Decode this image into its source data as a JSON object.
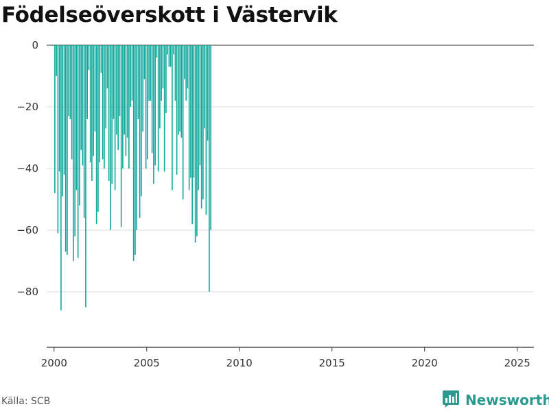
{
  "title": "Födelseöverskott i Västervik",
  "source": "Källa: SCB",
  "brand": {
    "name": "Newsworthy",
    "icon": "newsworthy-logo-icon",
    "color": "#2a9a8f"
  },
  "colors": {
    "bar": "#0fa89a",
    "grid": "#dddddd",
    "axis": "#333333"
  },
  "chart_data": {
    "type": "bar",
    "title": "Födelseöverskott i Västervik",
    "xlabel": "",
    "ylabel": "",
    "xlim": [
      1999.6,
      2025.9
    ],
    "ylim": [
      -98,
      0
    ],
    "y_ticks": [
      0,
      -20,
      -40,
      -60,
      -80
    ],
    "y_tick_labels": [
      "0",
      "−20",
      "−40",
      "−60",
      "−80"
    ],
    "x_ticks": [
      2000,
      2005,
      2010,
      2015,
      2020,
      2025
    ],
    "x_tick_labels": [
      "2000",
      "2005",
      "2010",
      "2015",
      "2020",
      "2025"
    ],
    "grid": true,
    "bar_period": "month",
    "start": "2000-01",
    "values": [
      -48,
      -10,
      -61,
      -41,
      -86,
      -49,
      -42,
      -67,
      -68,
      -23,
      -24,
      -37,
      -70,
      -62,
      -47,
      -69,
      -52,
      -34,
      -39,
      -56,
      -85,
      -24,
      -8,
      -38,
      -44,
      -36,
      -28,
      -58,
      -54,
      -38,
      -9,
      -37,
      -40,
      -27,
      -14,
      -44,
      -60,
      -45,
      -24,
      -47,
      -29,
      -34,
      -23,
      -59,
      -40,
      -29,
      -36,
      -30,
      -40,
      -20,
      -18,
      -70,
      -68,
      -60,
      -24,
      -56,
      -49,
      -28,
      -11,
      -40,
      -37,
      -18,
      -18,
      -35,
      -45,
      -39,
      -4,
      -41,
      -27,
      -18,
      -14,
      -41,
      -22,
      -3,
      -7,
      -7,
      -47,
      -3,
      -18,
      -42,
      -29,
      -28,
      -30,
      -50,
      -11,
      -18,
      -14,
      -47,
      -43,
      -58,
      -43,
      -64,
      -62,
      -47,
      -39,
      -53,
      -50,
      -27,
      -55,
      -31,
      -80,
      -60
    ]
  }
}
